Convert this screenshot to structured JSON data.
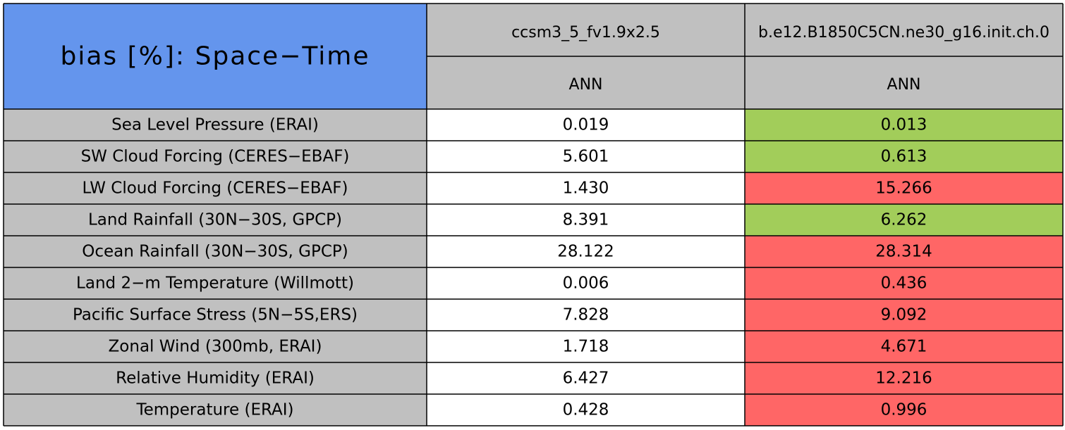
{
  "table": {
    "title": "bias [%]: Space−Time",
    "title_color": "#6495ed",
    "header_color": "#c0c0c0",
    "label_color": "#c0c0c0",
    "columns": [
      "ccsm3_5_fv1.9x2.5",
      "b.e12.B1850C5CN.ne30_g16.init.ch.0"
    ],
    "subheaders": [
      "ANN",
      "ANN"
    ],
    "rows": [
      {
        "label": "Sea Level Pressure (ERAI)",
        "values": [
          "0.019",
          "0.013"
        ],
        "colors": [
          "#ffffff",
          "#a2cd5a"
        ]
      },
      {
        "label": "SW Cloud Forcing (CERES−EBAF)",
        "values": [
          "5.601",
          "0.613"
        ],
        "colors": [
          "#ffffff",
          "#a2cd5a"
        ]
      },
      {
        "label": "LW Cloud Forcing (CERES−EBAF)",
        "values": [
          "1.430",
          "15.266"
        ],
        "colors": [
          "#ffffff",
          "#ff6666"
        ]
      },
      {
        "label": "Land Rainfall (30N−30S, GPCP)",
        "values": [
          "8.391",
          "6.262"
        ],
        "colors": [
          "#ffffff",
          "#a2cd5a"
        ]
      },
      {
        "label": "Ocean Rainfall (30N−30S, GPCP)",
        "values": [
          "28.122",
          "28.314"
        ],
        "colors": [
          "#ffffff",
          "#ff6666"
        ]
      },
      {
        "label": "Land 2−m Temperature (Willmott)",
        "values": [
          "0.006",
          "0.436"
        ],
        "colors": [
          "#ffffff",
          "#ff6666"
        ]
      },
      {
        "label": "Pacific Surface Stress (5N−5S,ERS)",
        "values": [
          "7.828",
          "9.092"
        ],
        "colors": [
          "#ffffff",
          "#ff6666"
        ]
      },
      {
        "label": "Zonal Wind (300mb, ERAI)",
        "values": [
          "1.718",
          "4.671"
        ],
        "colors": [
          "#ffffff",
          "#ff6666"
        ]
      },
      {
        "label": "Relative Humidity (ERAI)",
        "values": [
          "6.427",
          "12.216"
        ],
        "colors": [
          "#ffffff",
          "#ff6666"
        ]
      },
      {
        "label": "Temperature (ERAI)",
        "values": [
          "0.428",
          "0.996"
        ],
        "colors": [
          "#ffffff",
          "#ff6666"
        ]
      }
    ]
  }
}
